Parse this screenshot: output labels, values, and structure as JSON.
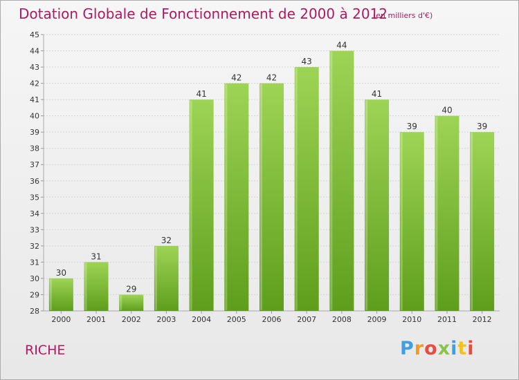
{
  "page": {
    "title": "Dotation Globale de Fonctionnement de 2000 à 2012",
    "unit": "(en milliers d'€)",
    "commune": "RICHE",
    "brand": "Proxiti"
  },
  "colors": {
    "title": "#b0195e",
    "bar_top": "#9ed455",
    "bar_bottom": "#5e9e1c",
    "brand_letters": [
      "#3f9fdf",
      "#f29a1e",
      "#e84c3d",
      "#8bc34a",
      "#3f9fdf",
      "#f2c21e",
      "#e84c3d"
    ]
  },
  "chart_data": {
    "type": "bar",
    "categories": [
      "2000",
      "2001",
      "2002",
      "2003",
      "2004",
      "2005",
      "2006",
      "2007",
      "2008",
      "2009",
      "2010",
      "2011",
      "2012"
    ],
    "values": [
      30,
      31,
      29,
      32,
      41,
      42,
      42,
      43,
      44,
      41,
      39,
      40,
      39
    ],
    "ylim": [
      28,
      45
    ],
    "yticks": [
      28,
      29,
      30,
      31,
      32,
      33,
      34,
      35,
      36,
      37,
      38,
      39,
      40,
      41,
      42,
      43,
      44,
      45
    ],
    "grid": true,
    "title": "Dotation Globale de Fonctionnement de 2000 à 2012",
    "xlabel": "",
    "ylabel": ""
  }
}
